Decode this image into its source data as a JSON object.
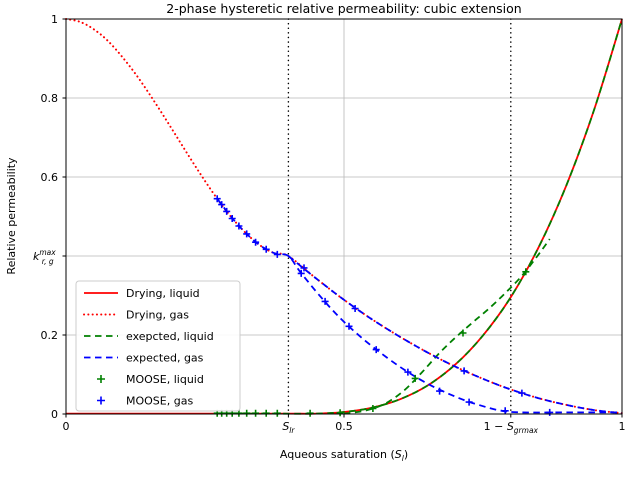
{
  "figure": {
    "title": "2-phase hysteretic relative permeability: cubic extension",
    "ylabel": "Relative permeability",
    "xlabel": {
      "pre": "Aqueous saturation (",
      "main": "S",
      "sub": "l",
      "post": ")"
    }
  },
  "chart_data": {
    "type": "line",
    "title": "2-phase hysteretic relative permeability: cubic extension",
    "xlabel": "Aqueous saturation (S_l)",
    "ylabel": "Relative permeability",
    "xlim": [
      0,
      1
    ],
    "ylim": [
      0,
      1
    ],
    "grid": true,
    "grid_color": "#b8b8b8",
    "background": "#ffffff",
    "x_ticks": [
      {
        "v": 0,
        "label": "0"
      },
      {
        "v": 0.4,
        "math": {
          "pre": "",
          "main": "S",
          "sub": "lr"
        }
      },
      {
        "v": 0.5,
        "label": "0.5"
      },
      {
        "v": 0.8,
        "math": {
          "pre": "1 − ",
          "main": "S",
          "sub": "grmax"
        }
      },
      {
        "v": 1,
        "label": "1"
      }
    ],
    "y_ticks": [
      {
        "v": 0,
        "label": "0"
      },
      {
        "v": 0.2,
        "label": "0.2"
      },
      {
        "v": 0.4,
        "math": {
          "main": "k",
          "sub": "r, g",
          "sup": "max"
        }
      },
      {
        "v": 0.6,
        "label": "0.6"
      },
      {
        "v": 0.8,
        "label": "0.8"
      },
      {
        "v": 1,
        "label": "1"
      }
    ],
    "vlines": [
      {
        "x": 0.4,
        "color": "#000000",
        "style": "dotted",
        "meaning": "S_lr"
      },
      {
        "x": 0.8,
        "color": "#000000",
        "style": "dotted",
        "meaning": "1 - S_grmax"
      }
    ],
    "series": [
      {
        "name": "Drying, liquid",
        "color": "#ff0000",
        "style": "solid",
        "paths": [
          [
            [
              0,
              0.001
            ],
            [
              0.1,
              0.001
            ],
            [
              0.2,
              0.001
            ],
            [
              0.3,
              0.001
            ],
            [
              0.4,
              0.001
            ],
            [
              0.45,
              0.001
            ],
            [
              0.5,
              0.005
            ],
            [
              0.55,
              0.016
            ],
            [
              0.6,
              0.037
            ],
            [
              0.65,
              0.072
            ],
            [
              0.7,
              0.125
            ],
            [
              0.75,
              0.199
            ],
            [
              0.8,
              0.296
            ],
            [
              0.85,
              0.422
            ],
            [
              0.9,
              0.579
            ],
            [
              0.95,
              0.771
            ],
            [
              1,
              1.0
            ]
          ]
        ]
      },
      {
        "name": "Drying, gas",
        "color": "#ff0000",
        "style": "dotted",
        "paths": [
          [
            [
              0,
              1.0
            ],
            [
              0.025,
              0.993
            ],
            [
              0.05,
              0.974
            ],
            [
              0.075,
              0.945
            ],
            [
              0.1,
              0.906
            ],
            [
              0.125,
              0.861
            ],
            [
              0.15,
              0.81
            ],
            [
              0.175,
              0.756
            ],
            [
              0.2,
              0.7
            ],
            [
              0.225,
              0.644
            ],
            [
              0.25,
              0.59
            ],
            [
              0.275,
              0.539
            ],
            [
              0.3,
              0.494
            ],
            [
              0.325,
              0.456
            ],
            [
              0.35,
              0.426
            ],
            [
              0.375,
              0.407
            ],
            [
              0.4,
              0.4
            ],
            [
              0.45,
              0.343
            ],
            [
              0.5,
              0.289
            ],
            [
              0.55,
              0.24
            ],
            [
              0.6,
              0.196
            ],
            [
              0.65,
              0.156
            ],
            [
              0.7,
              0.12
            ],
            [
              0.75,
              0.089
            ],
            [
              0.8,
              0.062
            ],
            [
              0.85,
              0.04
            ],
            [
              0.9,
              0.023
            ],
            [
              0.95,
              0.01
            ],
            [
              1,
              0.002
            ]
          ]
        ]
      },
      {
        "name": "exepcted, liquid",
        "color": "#008000",
        "style": "dashed",
        "paths": [
          [
            [
              0.272,
              0.001
            ],
            [
              0.35,
              0.001
            ],
            [
              0.45,
              0.001
            ],
            [
              0.5,
              0.005
            ],
            [
              0.55,
              0.016
            ],
            [
              0.6,
              0.037
            ],
            [
              0.65,
              0.072
            ],
            [
              0.7,
              0.125
            ],
            [
              0.75,
              0.199
            ],
            [
              0.8,
              0.296
            ],
            [
              0.85,
              0.422
            ],
            [
              0.9,
              0.579
            ],
            [
              0.95,
              0.771
            ],
            [
              1,
              1.0
            ]
          ],
          [
            [
              0.5,
              0.001
            ],
            [
              0.52,
              0.004
            ],
            [
              0.55,
              0.013
            ],
            [
              0.58,
              0.031
            ],
            [
              0.61,
              0.062
            ],
            [
              0.64,
              0.105
            ],
            [
              0.67,
              0.152
            ],
            [
              0.7,
              0.193
            ],
            [
              0.73,
              0.23
            ],
            [
              0.76,
              0.266
            ],
            [
              0.79,
              0.306
            ],
            [
              0.82,
              0.35
            ],
            [
              0.85,
              0.404
            ],
            [
              0.87,
              0.443
            ]
          ]
        ]
      },
      {
        "name": "expected, gas",
        "color": "#0000ff",
        "style": "dashed",
        "paths": [
          [
            [
              0.4,
              0.4
            ],
            [
              0.45,
              0.343
            ],
            [
              0.5,
              0.289
            ],
            [
              0.55,
              0.24
            ],
            [
              0.6,
              0.196
            ],
            [
              0.65,
              0.156
            ],
            [
              0.7,
              0.12
            ],
            [
              0.75,
              0.089
            ],
            [
              0.8,
              0.062
            ],
            [
              0.85,
              0.04
            ],
            [
              0.9,
              0.023
            ],
            [
              0.95,
              0.01
            ],
            [
              1,
              0.002
            ]
          ],
          [
            [
              0.272,
              0.545
            ],
            [
              0.3,
              0.494
            ],
            [
              0.325,
              0.456
            ],
            [
              0.35,
              0.426
            ],
            [
              0.375,
              0.407
            ],
            [
              0.4,
              0.4
            ],
            [
              0.42,
              0.362
            ],
            [
              0.45,
              0.31
            ],
            [
              0.48,
              0.262
            ],
            [
              0.51,
              0.22
            ],
            [
              0.55,
              0.172
            ],
            [
              0.6,
              0.12
            ],
            [
              0.65,
              0.077
            ],
            [
              0.7,
              0.044
            ],
            [
              0.74,
              0.024
            ],
            [
              0.78,
              0.009
            ],
            [
              0.82,
              0.004
            ],
            [
              0.9,
              0.004
            ],
            [
              1,
              0.004
            ]
          ]
        ]
      },
      {
        "name": "MOOSE, liquid",
        "color": "#008000",
        "style": "marker-plus",
        "points": [
          [
            0.272,
            0.002
          ],
          [
            0.28,
            0.002
          ],
          [
            0.289,
            0.002
          ],
          [
            0.299,
            0.002
          ],
          [
            0.311,
            0.002
          ],
          [
            0.325,
            0.002
          ],
          [
            0.341,
            0.002
          ],
          [
            0.36,
            0.002
          ],
          [
            0.38,
            0.002
          ],
          [
            0.439,
            0.002
          ],
          [
            0.493,
            0.003
          ],
          [
            0.552,
            0.014
          ],
          [
            0.628,
            0.09
          ],
          [
            0.714,
            0.205
          ],
          [
            0.827,
            0.36
          ]
        ]
      },
      {
        "name": "MOOSE, gas",
        "color": "#0000ff",
        "style": "marker-plus",
        "points": [
          [
            0.272,
            0.545
          ],
          [
            0.28,
            0.53
          ],
          [
            0.289,
            0.513
          ],
          [
            0.299,
            0.495
          ],
          [
            0.311,
            0.476
          ],
          [
            0.325,
            0.456
          ],
          [
            0.341,
            0.435
          ],
          [
            0.36,
            0.417
          ],
          [
            0.38,
            0.404
          ],
          [
            0.423,
            0.356
          ],
          [
            0.428,
            0.37
          ],
          [
            0.466,
            0.285
          ],
          [
            0.509,
            0.222
          ],
          [
            0.52,
            0.267
          ],
          [
            0.558,
            0.163
          ],
          [
            0.615,
            0.106
          ],
          [
            0.672,
            0.058
          ],
          [
            0.716,
            0.109
          ],
          [
            0.725,
            0.03
          ],
          [
            0.79,
            0.008
          ],
          [
            0.82,
            0.053
          ],
          [
            0.87,
            0.004
          ]
        ]
      }
    ],
    "legend": {
      "position": "lower left",
      "entries": [
        "Drying, liquid",
        "Drying, gas",
        "exepcted, liquid",
        "expected, gas",
        "MOOSE, liquid",
        "MOOSE, gas"
      ]
    }
  }
}
